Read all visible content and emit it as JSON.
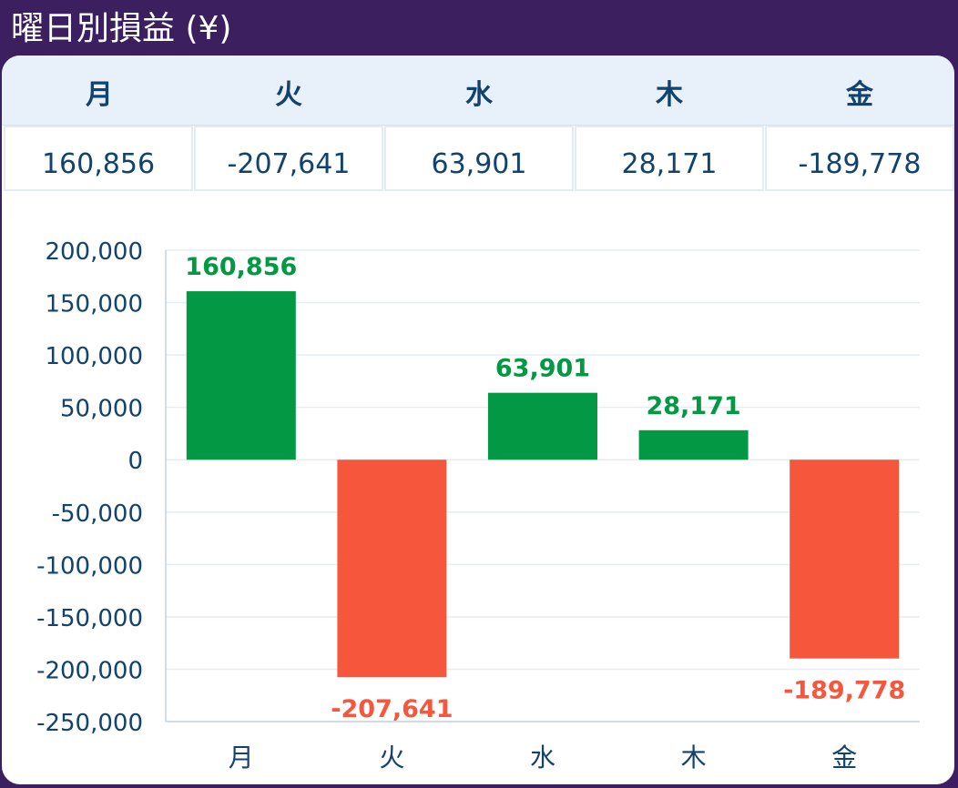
{
  "header": {
    "title": "曜日別損益 (¥)"
  },
  "table": {
    "days": [
      "月",
      "火",
      "水",
      "木",
      "金"
    ],
    "values": [
      "160,856",
      "-207,641",
      "63,901",
      "28,171",
      "-189,778"
    ]
  },
  "colors": {
    "header_bg": "#3b1f5e",
    "positive": "#039844",
    "negative": "#f6573c",
    "text": "#12426e",
    "table_header_bg": "#e8f1fa"
  },
  "chart_data": {
    "type": "bar",
    "title": "",
    "xlabel": "",
    "ylabel": "",
    "categories": [
      "月",
      "火",
      "水",
      "木",
      "金"
    ],
    "values": [
      160856,
      -207641,
      63901,
      28171,
      -189778
    ],
    "value_labels": [
      "160,856",
      "-207,641",
      "63,901",
      "28,171",
      "-189,778"
    ],
    "ylim": [
      -250000,
      200000
    ],
    "yticks": [
      200000,
      150000,
      100000,
      50000,
      0,
      -50000,
      -100000,
      -150000,
      -200000,
      -250000
    ],
    "ytick_labels": [
      "200,000",
      "150,000",
      "100,000",
      "50,000",
      "0",
      "-50,000",
      "-100,000",
      "-150,000",
      "-200,000",
      "-250,000"
    ],
    "grid": true,
    "legend": "none"
  }
}
